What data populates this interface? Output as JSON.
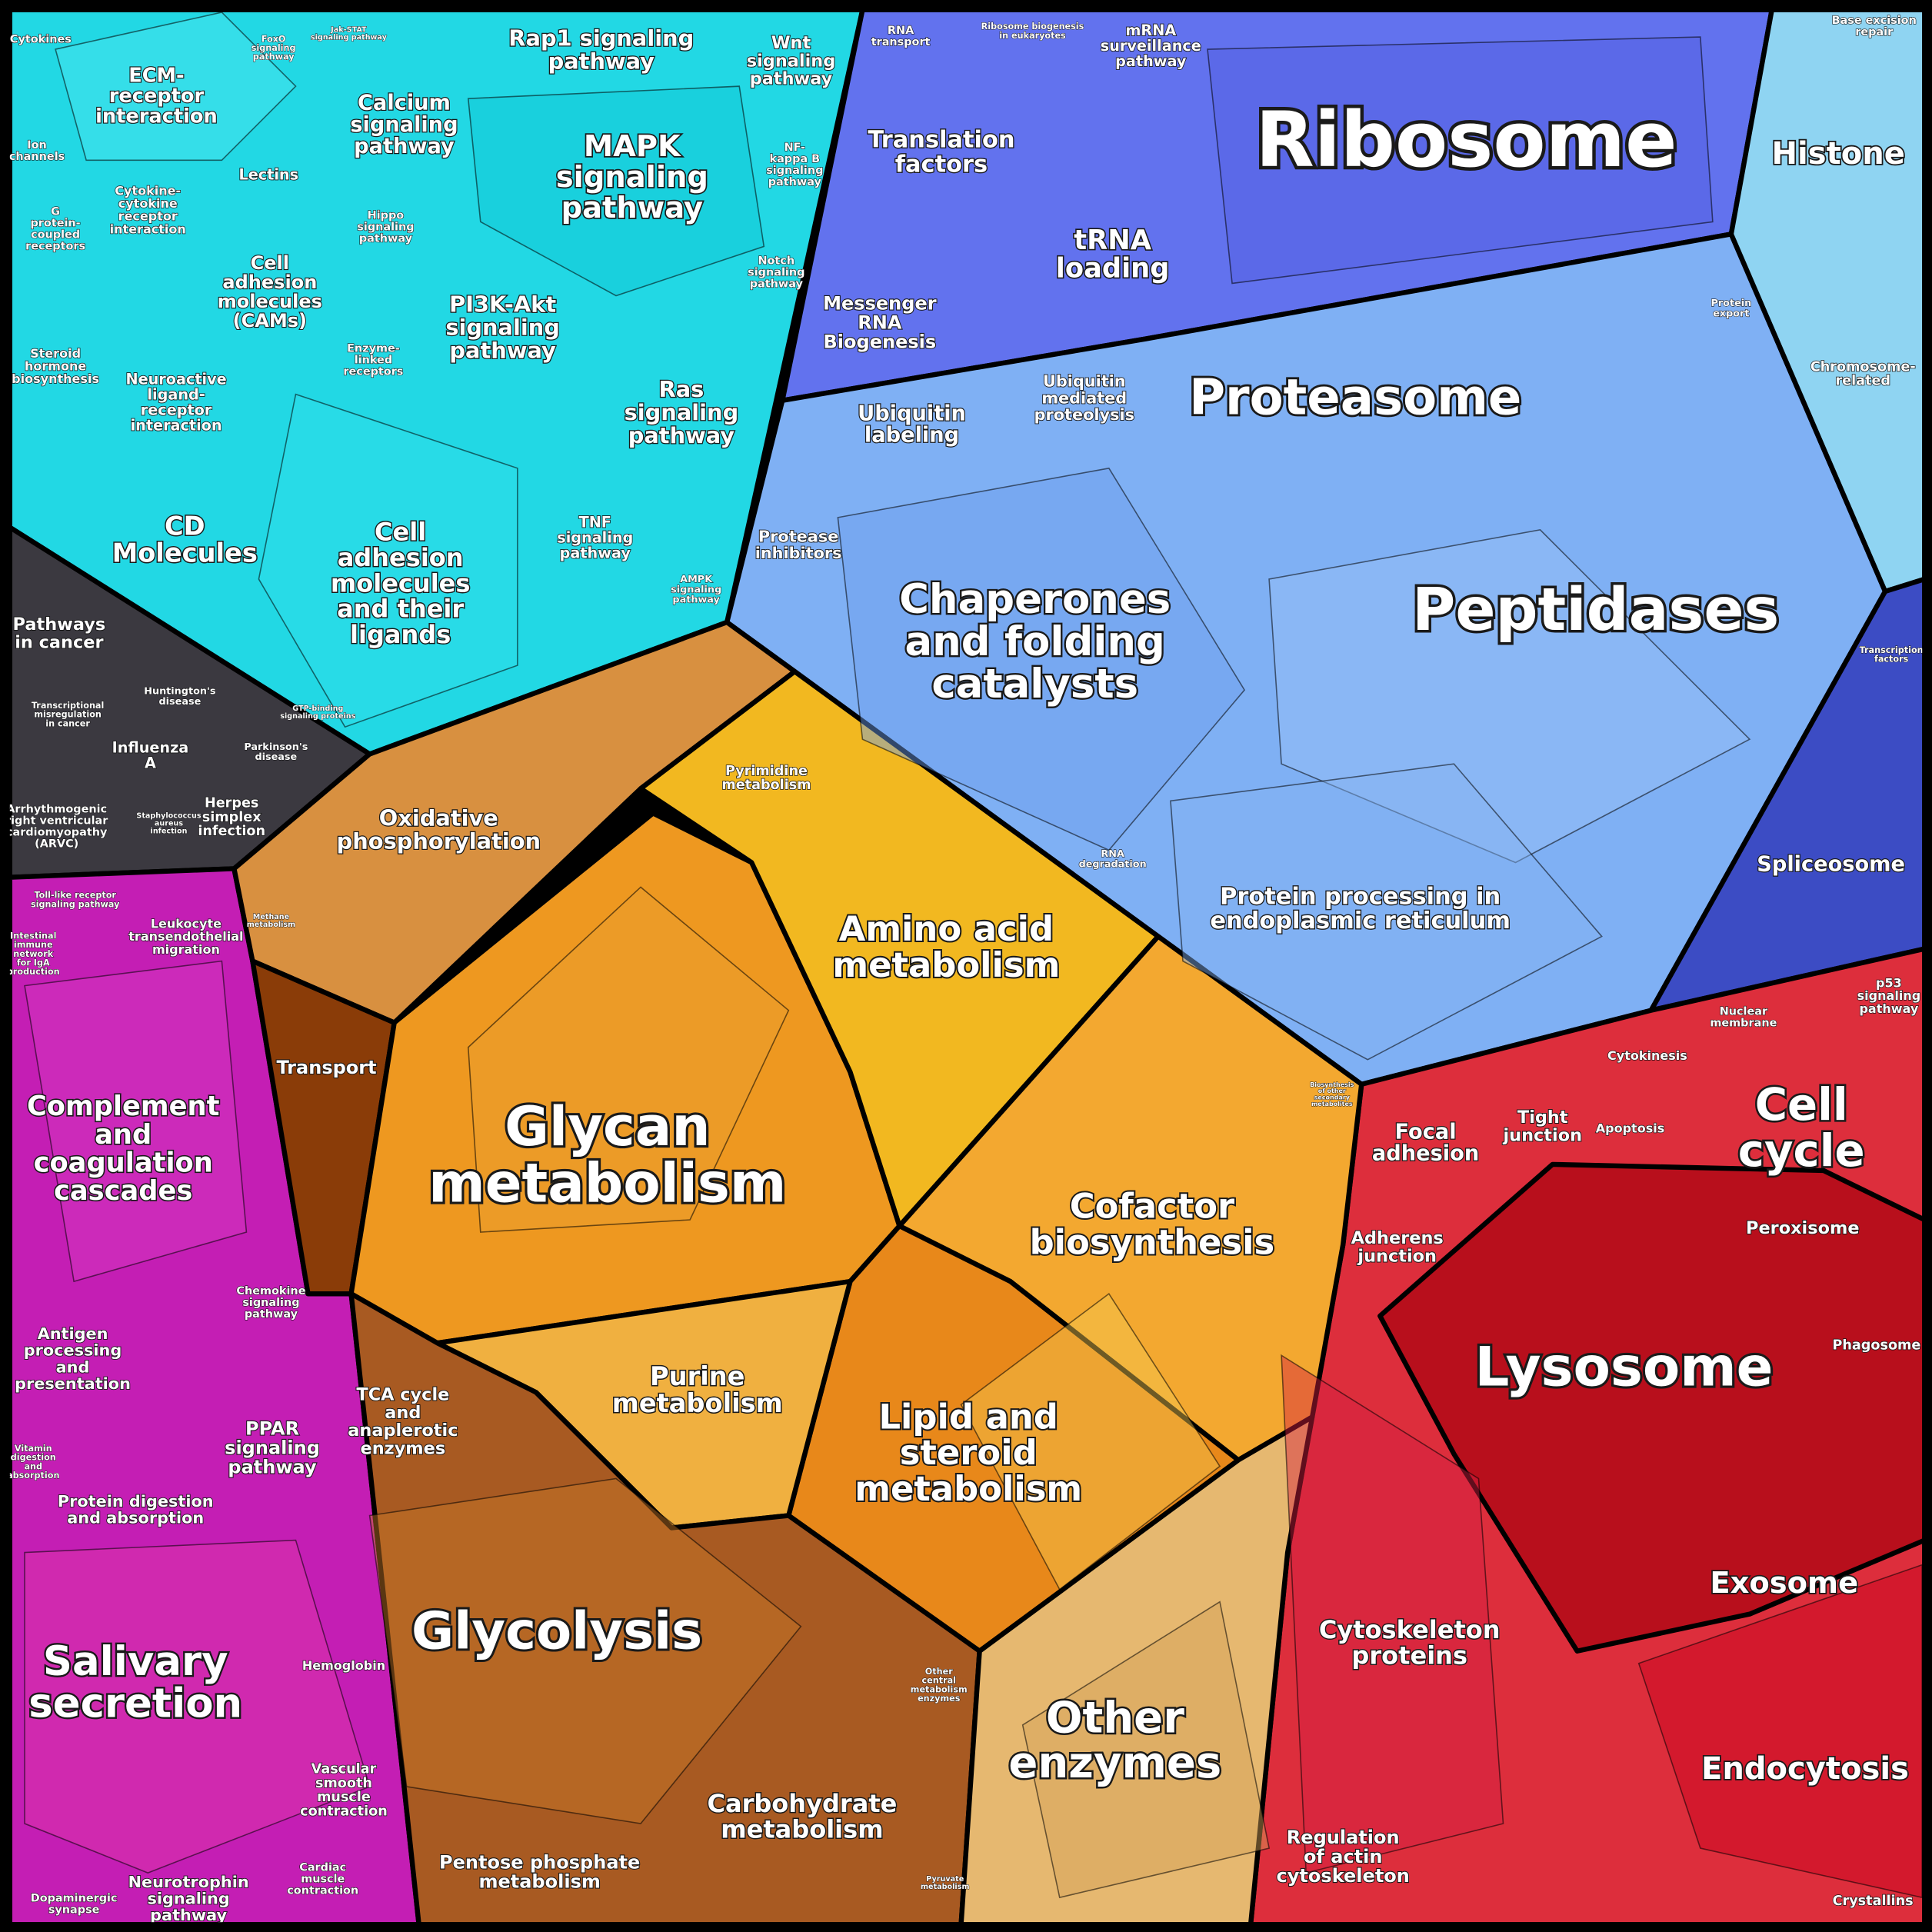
{
  "labels": [
    {
      "lines": [
        "Cytokines"
      ]
    },
    {
      "lines": [
        "ECM-",
        "receptor",
        "interaction"
      ]
    },
    {
      "lines": [
        "FoxO",
        "signaling",
        "pathway"
      ]
    },
    {
      "lines": [
        "Jak-STAT",
        "signaling pathway"
      ]
    },
    {
      "lines": [
        "Rap1 signaling",
        "pathway"
      ]
    },
    {
      "lines": [
        "Wnt",
        "signaling",
        "pathway"
      ]
    },
    {
      "lines": [
        "Ion",
        "channels"
      ]
    },
    {
      "lines": [
        "Calcium",
        "signaling",
        "pathway"
      ]
    },
    {
      "lines": [
        "MAPK",
        "signaling",
        "pathway"
      ]
    },
    {
      "lines": [
        "Lectins"
      ]
    },
    {
      "lines": [
        "Cytokine-",
        "cytokine",
        "receptor",
        "interaction"
      ]
    },
    {
      "lines": [
        "NF-",
        "kappa B",
        "signaling",
        "pathway"
      ]
    },
    {
      "lines": [
        "G",
        "protein-",
        "coupled",
        "receptors"
      ]
    },
    {
      "lines": [
        "Hippo",
        "signaling",
        "pathway"
      ]
    },
    {
      "lines": [
        "Cell",
        "adhesion",
        "molecules",
        "(CAMs)"
      ]
    },
    {
      "lines": [
        "Notch",
        "signaling",
        "pathway"
      ]
    },
    {
      "lines": [
        "PI3K-Akt",
        "signaling",
        "pathway"
      ]
    },
    {
      "lines": [
        "Steroid",
        "hormone",
        "biosynthesis"
      ]
    },
    {
      "lines": [
        "Enzyme-",
        "linked",
        "receptors"
      ]
    },
    {
      "lines": [
        "Neuroactive",
        "ligand-",
        "receptor",
        "interaction"
      ]
    },
    {
      "lines": [
        "Ras",
        "signaling",
        "pathway"
      ]
    },
    {
      "lines": [
        "CD",
        "Molecules"
      ]
    },
    {
      "lines": [
        "Cell",
        "adhesion",
        "molecules",
        "and their",
        "ligands"
      ]
    },
    {
      "lines": [
        "TNF",
        "signaling",
        "pathway"
      ]
    },
    {
      "lines": [
        "AMPK",
        "signaling",
        "pathway"
      ]
    },
    {
      "lines": [
        "GTP-binding",
        "signaling proteins"
      ]
    },
    {
      "lines": [
        "Pathways",
        "in cancer"
      ]
    },
    {
      "lines": [
        "Huntington's",
        "disease"
      ]
    },
    {
      "lines": [
        "Transcriptional",
        "misregulation",
        "in cancer"
      ]
    },
    {
      "lines": [
        "Parkinson's",
        "disease"
      ]
    },
    {
      "lines": [
        "Influenza",
        "A"
      ]
    },
    {
      "lines": [
        "Arrhythmogenic",
        "right ventricular",
        "cardiomyopathy",
        "(ARVC)"
      ]
    },
    {
      "lines": [
        "Staphylococcus",
        "aureus",
        "infection"
      ]
    },
    {
      "lines": [
        "Herpes",
        "simplex",
        "infection"
      ]
    },
    {
      "lines": [
        "RNA",
        "transport"
      ]
    },
    {
      "lines": [
        "Ribosome biogenesis",
        "in eukaryotes"
      ]
    },
    {
      "lines": [
        "mRNA",
        "surveillance",
        "pathway"
      ]
    },
    {
      "lines": [
        "Ribosome"
      ]
    },
    {
      "lines": [
        "Histone"
      ]
    },
    {
      "lines": [
        "Base excision",
        "repair"
      ]
    },
    {
      "lines": [
        "Translation",
        "factors"
      ]
    },
    {
      "lines": [
        "tRNA",
        "loading"
      ]
    },
    {
      "lines": [
        "Messenger",
        "RNA",
        "Biogenesis"
      ]
    },
    {
      "lines": [
        "Chromosome-",
        "related"
      ]
    },
    {
      "lines": [
        "Protein",
        "export"
      ]
    },
    {
      "lines": [
        "Ubiquitin",
        "mediated",
        "proteolysis"
      ]
    },
    {
      "lines": [
        "Ubiquitin",
        "labeling"
      ]
    },
    {
      "lines": [
        "Proteasome"
      ]
    },
    {
      "lines": [
        "Protease",
        "inhibitors"
      ]
    },
    {
      "lines": [
        "Chaperones",
        "and folding",
        "catalysts"
      ]
    },
    {
      "lines": [
        "Peptidases"
      ]
    },
    {
      "lines": [
        "Transcription",
        "factors"
      ]
    },
    {
      "lines": [
        "RNA",
        "degradation"
      ]
    },
    {
      "lines": [
        "Protein processing in",
        "endoplasmic reticulum"
      ]
    },
    {
      "lines": [
        "Spliceosome"
      ]
    },
    {
      "lines": [
        "p53",
        "signaling",
        "pathway"
      ]
    },
    {
      "lines": [
        "Nuclear",
        "membrane"
      ]
    },
    {
      "lines": [
        "Cytokinesis"
      ]
    },
    {
      "lines": [
        "Cell",
        "cycle"
      ]
    },
    {
      "lines": [
        "Focal",
        "adhesion"
      ]
    },
    {
      "lines": [
        "Tight",
        "junction"
      ]
    },
    {
      "lines": [
        "Apoptosis"
      ]
    },
    {
      "lines": [
        "Adherens",
        "junction"
      ]
    },
    {
      "lines": [
        "Peroxisome"
      ]
    },
    {
      "lines": [
        "Phagosome"
      ]
    },
    {
      "lines": [
        "Lysosome"
      ]
    },
    {
      "lines": [
        "Exosome"
      ]
    },
    {
      "lines": [
        "Cytoskeleton",
        "proteins"
      ]
    },
    {
      "lines": [
        "Endocytosis"
      ]
    },
    {
      "lines": [
        "Regulation",
        "of actin",
        "cytoskeleton"
      ]
    },
    {
      "lines": [
        "Crystallins"
      ]
    },
    {
      "lines": [
        "Pyrimidine",
        "metabolism"
      ]
    },
    {
      "lines": [
        "Oxidative",
        "phosphorylation"
      ]
    },
    {
      "lines": [
        "Methane",
        "metabolism"
      ]
    },
    {
      "lines": [
        "Amino acid",
        "metabolism"
      ]
    },
    {
      "lines": [
        "Transport"
      ]
    },
    {
      "lines": [
        "Biosynthesis",
        "of other",
        "secondary",
        "metabolites"
      ]
    },
    {
      "lines": [
        "Glycan",
        "metabolism"
      ]
    },
    {
      "lines": [
        "Cofactor",
        "biosynthesis"
      ]
    },
    {
      "lines": [
        "TCA cycle",
        "and",
        "anaplerotic",
        "enzymes"
      ]
    },
    {
      "lines": [
        "Purine",
        "metabolism"
      ]
    },
    {
      "lines": [
        "Lipid and",
        "steroid",
        "metabolism"
      ]
    },
    {
      "lines": [
        "Glycolysis"
      ]
    },
    {
      "lines": [
        "Other",
        "central",
        "metabolism",
        "enzymes"
      ]
    },
    {
      "lines": [
        "Other",
        "enzymes"
      ]
    },
    {
      "lines": [
        "Carbohydrate",
        "metabolism"
      ]
    },
    {
      "lines": [
        "Pentose phosphate",
        "metabolism"
      ]
    },
    {
      "lines": [
        "Pyruvate",
        "metabolism"
      ]
    },
    {
      "lines": [
        "Toll-like receptor",
        "signaling pathway"
      ]
    },
    {
      "lines": [
        "Leukocyte",
        "transendothelial",
        "migration"
      ]
    },
    {
      "lines": [
        "Intestinal",
        "immune",
        "network",
        "for IgA",
        "production"
      ]
    },
    {
      "lines": [
        "Complement",
        "and",
        "coagulation",
        "cascades"
      ]
    },
    {
      "lines": [
        "Chemokine",
        "signaling",
        "pathway"
      ]
    },
    {
      "lines": [
        "Antigen",
        "processing",
        "and",
        "presentation"
      ]
    },
    {
      "lines": [
        "PPAR",
        "signaling",
        "pathway"
      ]
    },
    {
      "lines": [
        "Vitamin",
        "digestion",
        "and",
        "absorption"
      ]
    },
    {
      "lines": [
        "Protein digestion",
        "and absorption"
      ]
    },
    {
      "lines": [
        "Salivary",
        "secretion"
      ]
    },
    {
      "lines": [
        "Hemoglobin"
      ]
    },
    {
      "lines": [
        "Vascular",
        "smooth",
        "muscle",
        "contraction"
      ]
    },
    {
      "lines": [
        "Cardiac",
        "muscle",
        "contraction"
      ]
    },
    {
      "lines": [
        "Neurotrophin",
        "signaling",
        "pathway"
      ]
    },
    {
      "lines": [
        "Dopaminergic",
        "synapse"
      ]
    }
  ]
}
